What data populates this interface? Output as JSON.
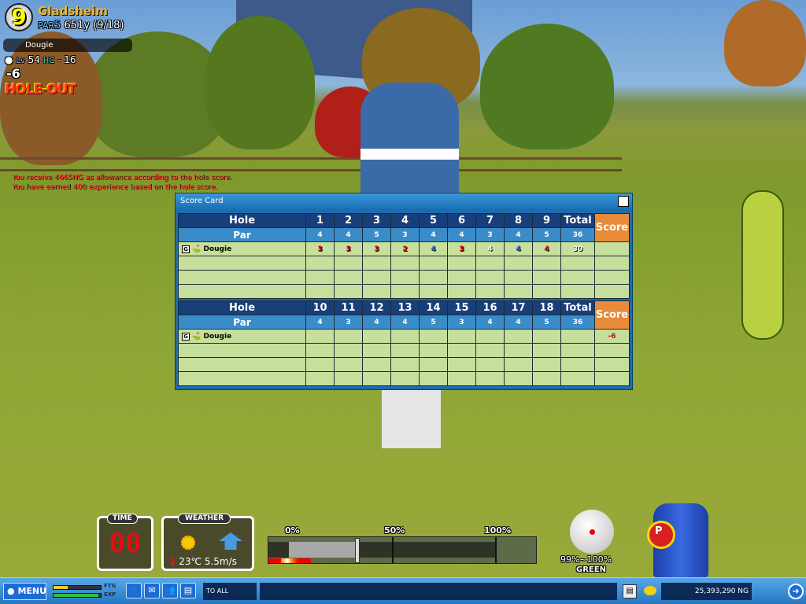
{
  "hud": {
    "hole_number": "9",
    "course": "Gladsheim",
    "par_label": "PAR",
    "par_value": "5",
    "distance": "651y",
    "hole_progress": "(9/18)",
    "player": "Dougie",
    "lv_label": "Lv",
    "level": "54",
    "hc_label": "HC",
    "handicap": "- 16",
    "score_display": "-6",
    "hole_out": "HOLE-OUT"
  },
  "messages": [
    "You receive  4665NG as allowance according to the hole score.",
    "You have earned 400 experience based on the hole score."
  ],
  "scorecard": {
    "title": "Score Card",
    "close": "X",
    "hole_label": "Hole",
    "par_label": "Par",
    "total_label": "Total",
    "score_label": "Score",
    "front": {
      "holes": [
        "1",
        "2",
        "3",
        "4",
        "5",
        "6",
        "7",
        "8",
        "9"
      ],
      "pars": [
        "4",
        "4",
        "5",
        "3",
        "4",
        "4",
        "3",
        "4",
        "5"
      ],
      "par_total": "36",
      "player": "Dougie",
      "scores": [
        "3",
        "3",
        "3",
        "2",
        "4",
        "3",
        "4",
        "4",
        "4"
      ],
      "score_colors": [
        "#c0101a",
        "#c0101a",
        "#c0101a",
        "#e01818",
        "#2e6fd0",
        "#c0101a",
        "#ffffff",
        "#2e6fd0",
        "#e01818"
      ],
      "total": "30",
      "score": ""
    },
    "back": {
      "holes": [
        "10",
        "11",
        "12",
        "13",
        "14",
        "15",
        "16",
        "17",
        "18"
      ],
      "pars": [
        "4",
        "3",
        "4",
        "4",
        "5",
        "3",
        "4",
        "4",
        "5"
      ],
      "par_total": "36",
      "player": "Dougie",
      "scores": [
        "",
        "",
        "",
        "",
        "",
        "",
        "",
        "",
        ""
      ],
      "total": "",
      "score": "-6"
    }
  },
  "panels": {
    "time_label": "TIME",
    "time_value": "00",
    "weather_label": "WEATHER",
    "temperature": "23℃",
    "wind": "5.5m/s"
  },
  "gauge": {
    "ticks": [
      "0%",
      "50%",
      "100%"
    ]
  },
  "ball": {
    "accuracy": "99%~100%",
    "lie": "GREEN"
  },
  "club": {
    "label": "P"
  },
  "bottombar": {
    "menu": "MENU",
    "ftg": "FTG",
    "exp": "EXP",
    "ftg_level": 0.3,
    "exp_level": 0.95,
    "chat_target": "TO ALL",
    "chat_value": "",
    "money": "25,393,290 NG"
  },
  "colors": {
    "score_header": "#e88a38",
    "hole_header": "#183f7a",
    "par_row": "#3a8cc8",
    "grid_cell": "#c6df9c"
  }
}
